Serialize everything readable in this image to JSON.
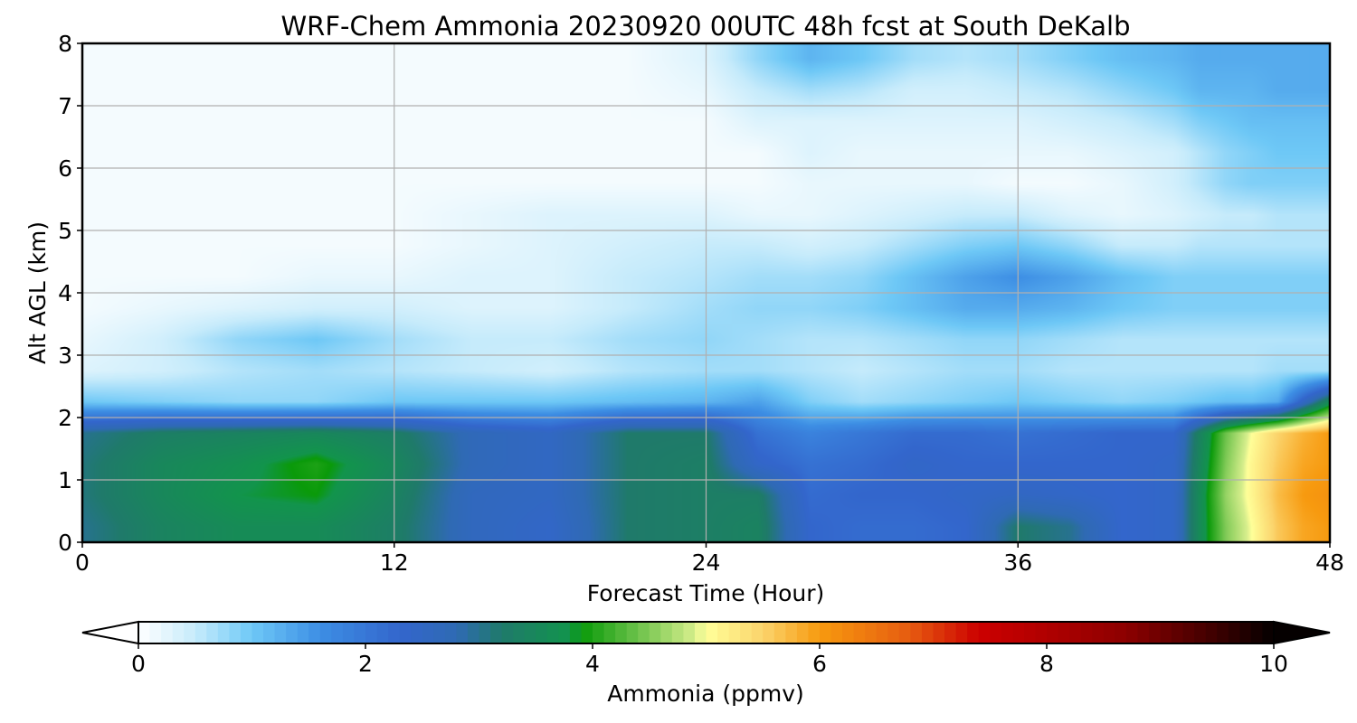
{
  "chart_data": {
    "type": "heatmap",
    "title": "WRF-Chem Ammonia  20230920 00UTC 48h fcst at South DeKalb",
    "xlabel": "Forecast Time (Hour)",
    "ylabel": "Alt AGL (km)",
    "xlim": [
      0,
      48
    ],
    "ylim": [
      0,
      8
    ],
    "xticks": [
      "0",
      "12",
      "24",
      "36",
      "48"
    ],
    "yticks": [
      "0",
      "1",
      "2",
      "3",
      "4",
      "5",
      "6",
      "7",
      "8"
    ],
    "grid": true,
    "x": [
      0,
      3,
      6,
      9,
      12,
      15,
      18,
      21,
      24,
      26,
      28,
      30,
      32,
      34,
      36,
      38,
      40,
      42,
      43,
      44,
      45,
      46,
      47,
      48
    ],
    "y": [
      0.25,
      0.75,
      1.25,
      1.75,
      2.25,
      2.75,
      3.25,
      3.75,
      4.25,
      4.75,
      5.25,
      5.75,
      6.25,
      6.75,
      7.25,
      7.75
    ],
    "z": [
      [
        3.0,
        3.4,
        3.6,
        3.6,
        3.3,
        2.6,
        2.4,
        3.2,
        3.3,
        3.4,
        2.3,
        2.2,
        2.2,
        2.3,
        3.2,
        3.0,
        2.3,
        2.4,
        3.6,
        4.5,
        5.0,
        5.6,
        5.9,
        6.0
      ],
      [
        3.1,
        3.5,
        3.8,
        3.9,
        3.4,
        2.6,
        2.5,
        3.2,
        3.3,
        3.3,
        2.2,
        2.3,
        2.3,
        2.4,
        2.5,
        2.4,
        2.3,
        2.4,
        3.6,
        4.6,
        5.1,
        5.7,
        6.0,
        6.1
      ],
      [
        3.1,
        3.5,
        3.7,
        4.0,
        3.5,
        2.7,
        2.5,
        3.2,
        3.3,
        2.4,
        2.1,
        2.2,
        2.4,
        2.3,
        2.3,
        2.3,
        2.3,
        2.4,
        3.5,
        4.5,
        5.1,
        5.6,
        5.9,
        6.0
      ],
      [
        3.0,
        3.3,
        3.4,
        3.5,
        3.3,
        2.7,
        2.5,
        3.2,
        3.2,
        2.1,
        1.8,
        2.0,
        2.2,
        2.2,
        2.1,
        2.2,
        2.3,
        2.3,
        3.4,
        4.4,
        5.0,
        5.5,
        5.8,
        6.0
      ],
      [
        1.0,
        0.9,
        0.8,
        0.8,
        1.0,
        1.0,
        1.0,
        1.1,
        1.2,
        1.4,
        0.9,
        0.7,
        0.8,
        0.9,
        1.0,
        0.9,
        0.8,
        0.9,
        1.0,
        1.1,
        1.1,
        1.3,
        2.5,
        3.6
      ],
      [
        0.3,
        0.4,
        0.6,
        0.7,
        0.6,
        0.5,
        0.4,
        0.6,
        0.7,
        0.7,
        0.6,
        0.5,
        0.6,
        0.7,
        0.7,
        0.6,
        0.6,
        0.6,
        0.6,
        0.6,
        0.6,
        0.7,
        0.7,
        0.7
      ],
      [
        0.2,
        0.4,
        0.8,
        1.0,
        0.7,
        0.5,
        0.5,
        0.7,
        0.8,
        0.7,
        0.6,
        0.6,
        0.7,
        0.8,
        0.8,
        0.7,
        0.6,
        0.6,
        0.6,
        0.6,
        0.6,
        0.6,
        0.6,
        0.6
      ],
      [
        0.1,
        0.2,
        0.3,
        0.4,
        0.4,
        0.3,
        0.3,
        0.5,
        0.7,
        0.8,
        0.8,
        0.9,
        1.1,
        1.3,
        1.3,
        1.2,
        1.0,
        0.9,
        0.9,
        0.9,
        0.9,
        0.9,
        0.9,
        0.9
      ],
      [
        0.1,
        0.1,
        0.1,
        0.2,
        0.2,
        0.3,
        0.3,
        0.5,
        0.6,
        0.7,
        0.7,
        0.8,
        1.1,
        1.4,
        1.6,
        1.4,
        1.1,
        0.9,
        0.9,
        0.9,
        0.9,
        0.9,
        0.9,
        0.9
      ],
      [
        0.1,
        0.1,
        0.1,
        0.1,
        0.1,
        0.2,
        0.3,
        0.4,
        0.5,
        0.5,
        0.4,
        0.5,
        0.7,
        0.9,
        1.0,
        0.8,
        0.5,
        0.5,
        0.6,
        0.6,
        0.6,
        0.6,
        0.6,
        0.6
      ],
      [
        0.1,
        0.1,
        0.1,
        0.1,
        0.1,
        0.2,
        0.3,
        0.3,
        0.3,
        0.2,
        0.2,
        0.3,
        0.4,
        0.5,
        0.5,
        0.3,
        0.2,
        0.3,
        0.4,
        0.5,
        0.5,
        0.6,
        0.6,
        0.6
      ],
      [
        0.1,
        0.1,
        0.1,
        0.1,
        0.1,
        0.1,
        0.1,
        0.1,
        0.1,
        0.1,
        0.2,
        0.2,
        0.2,
        0.2,
        0.1,
        0.1,
        0.2,
        0.4,
        0.6,
        0.8,
        0.9,
        0.9,
        0.9,
        0.9
      ],
      [
        0.1,
        0.1,
        0.1,
        0.1,
        0.1,
        0.1,
        0.1,
        0.1,
        0.1,
        0.1,
        0.3,
        0.2,
        0.2,
        0.2,
        0.2,
        0.2,
        0.3,
        0.4,
        0.6,
        0.8,
        0.9,
        1.0,
        1.0,
        1.0
      ],
      [
        0.1,
        0.1,
        0.1,
        0.1,
        0.1,
        0.1,
        0.1,
        0.1,
        0.1,
        0.3,
        0.3,
        0.3,
        0.3,
        0.3,
        0.3,
        0.4,
        0.5,
        0.7,
        0.9,
        1.0,
        1.1,
        1.1,
        1.1,
        1.1
      ],
      [
        0.1,
        0.1,
        0.1,
        0.1,
        0.1,
        0.1,
        0.1,
        0.1,
        0.2,
        0.5,
        0.7,
        0.6,
        0.4,
        0.4,
        0.5,
        0.6,
        0.8,
        1.0,
        1.2,
        1.2,
        1.2,
        1.3,
        1.3,
        1.3
      ],
      [
        0.1,
        0.1,
        0.1,
        0.1,
        0.1,
        0.1,
        0.1,
        0.1,
        0.3,
        0.8,
        1.2,
        1.0,
        0.7,
        0.6,
        0.7,
        0.9,
        1.1,
        1.2,
        1.3,
        1.3,
        1.3,
        1.3,
        1.3,
        1.3
      ]
    ],
    "colorbar": {
      "label": "Ammonia  (ppmv)",
      "range": [
        0,
        10
      ],
      "ticks": [
        "0",
        "2",
        "4",
        "6",
        "8",
        "10"
      ],
      "extend": "both",
      "stops": [
        [
          0.0,
          "#ffffff"
        ],
        [
          0.5,
          "#c6ebfb"
        ],
        [
          1.0,
          "#6ec8f6"
        ],
        [
          1.6,
          "#3d8ee4"
        ],
        [
          2.3,
          "#3366cc"
        ],
        [
          2.8,
          "#2f6ab4"
        ],
        [
          3.2,
          "#1f7a6a"
        ],
        [
          3.8,
          "#12944c"
        ],
        [
          3.9,
          "#0a9a0a"
        ],
        [
          4.4,
          "#6cc24a"
        ],
        [
          4.9,
          "#d6ee8c"
        ],
        [
          5.0,
          "#ffff99"
        ],
        [
          5.5,
          "#fbd46c"
        ],
        [
          6.0,
          "#f79a0f"
        ],
        [
          6.8,
          "#e65b10"
        ],
        [
          7.4,
          "#cc0000"
        ],
        [
          8.0,
          "#b00000"
        ],
        [
          8.7,
          "#8c0000"
        ],
        [
          9.4,
          "#460000"
        ],
        [
          10.0,
          "#050000"
        ]
      ]
    }
  }
}
